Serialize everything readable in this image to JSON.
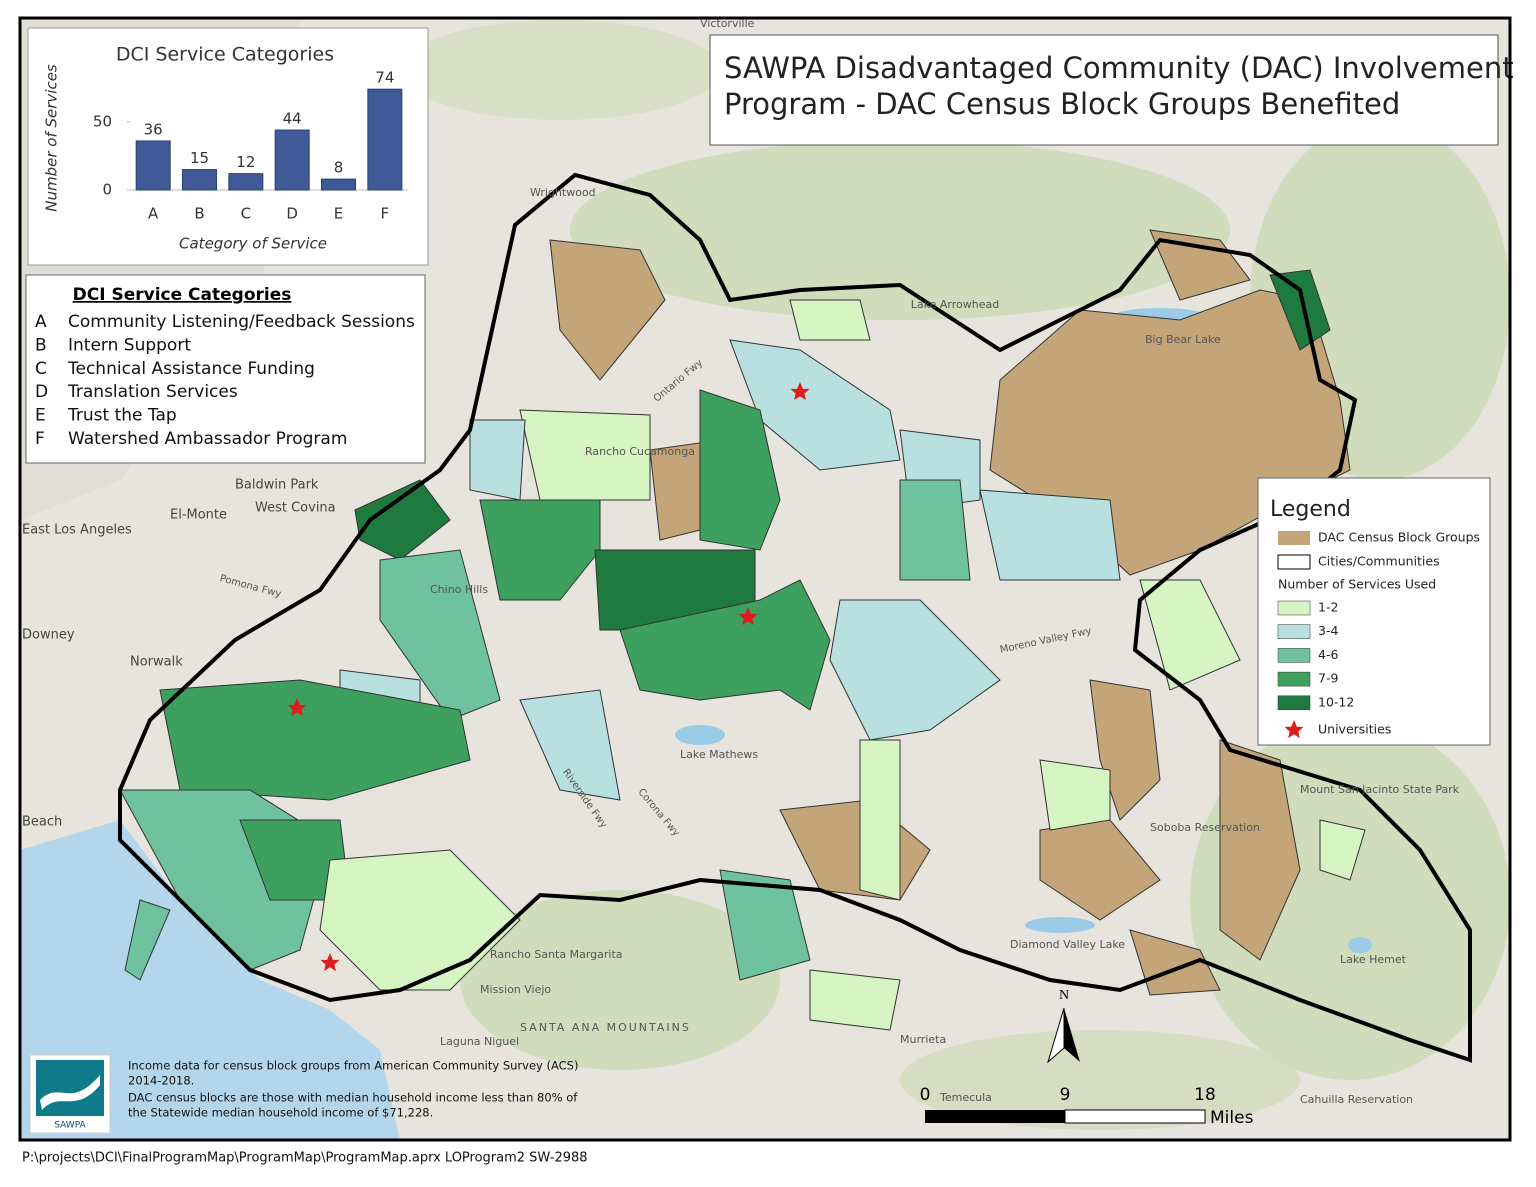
{
  "chart_data": {
    "type": "bar",
    "title": "DCI Service Categories",
    "y_label": "Number of Services",
    "x_label": "Category of Service",
    "categories": [
      "A",
      "B",
      "C",
      "D",
      "E",
      "F"
    ],
    "values": [
      36,
      15,
      12,
      44,
      8,
      74
    ],
    "color": "#3f5a96",
    "ylim": [
      0,
      80
    ],
    "yticks": [
      0,
      50
    ]
  },
  "title": {
    "line1": "SAWPA Disadvantaged Community (DAC) Involvement",
    "line2": "Program - DAC Census Block Groups Benefited"
  },
  "categories_box": {
    "title": "DCI Service Categories",
    "items": [
      {
        "letter": "A",
        "label": "Community Listening/Feedback Sessions"
      },
      {
        "letter": "B",
        "label": "Intern Support"
      },
      {
        "letter": "C",
        "label": "Technical Assistance Funding"
      },
      {
        "letter": "D",
        "label": "Translation Services"
      },
      {
        "letter": "E",
        "label": "Trust the Tap"
      },
      {
        "letter": "F",
        "label": "Watershed Ambassador Program"
      }
    ]
  },
  "legend": {
    "title": "Legend",
    "dac": "DAC Census Block Groups",
    "dac_color": "#c4a57a",
    "cities": "Cities/Communities",
    "services_heading": "Number of Services Used",
    "classes": [
      {
        "label": "1-2",
        "color": "#d6f5c2"
      },
      {
        "label": "3-4",
        "color": "#b8e0e0"
      },
      {
        "label": "4-6",
        "color": "#6fc2a0"
      },
      {
        "label": "7-9",
        "color": "#3ea05e"
      },
      {
        "label": "10-12",
        "color": "#1e7a3f"
      }
    ],
    "universities": "Universities"
  },
  "scale_bar": {
    "labels": [
      "0",
      "9",
      "18"
    ],
    "unit": "Miles"
  },
  "north": "N",
  "logo": "SAWPA",
  "notes": [
    "Income data for census block groups from American Community Survey (ACS)",
    "2014-2018.",
    "DAC census blocks are those with median household income less than 80% of",
    "the Statewide median household income of $71,228."
  ],
  "footer": "P:\\projects\\DCI\\FinalProgramMap\\ProgramMap\\ProgramMap.aprx LOProgram2 SW-2988",
  "places": [
    "Victorville",
    "Wrightwood",
    "Lake Arrowhead",
    "Big Bear Lake",
    "Rancho Cucamonga",
    "Baldwin Park",
    "West Covina",
    "El-Monte",
    "East Los Angeles",
    "Downey",
    "Norwalk",
    "Beach",
    "Chino Hills",
    "Lake Mathews",
    "Rancho Santa Margarita",
    "Mission Viejo",
    "Laguna Niguel",
    "Murrieta",
    "Temecula",
    "Soboba Reservation",
    "Diamond Valley Lake",
    "Lake Hemet",
    "Cahuilla Reservation",
    "SANTA ANA MOUNTAINS",
    "Mount San Jacinto State Park",
    "Moreno Valley Fwy",
    "Ontario Fwy",
    "Pomona Fwy",
    "Corona Fwy",
    "Riverside Fwy"
  ]
}
